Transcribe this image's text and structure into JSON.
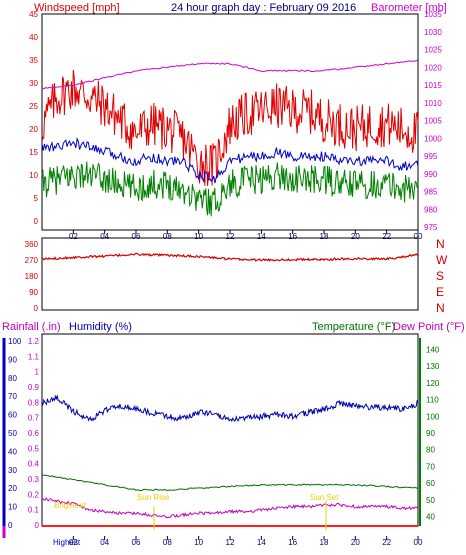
{
  "title": "24 hour graph day : February 09 2016",
  "colors": {
    "wind": "#e00000",
    "wind_avg": "#0000c8",
    "wind_low": "#008000",
    "barometer": "#d000d0",
    "direction": "#d00000",
    "rain": "#d000d0",
    "humidity": "#0000b0",
    "temperature": "#007000",
    "dew_point": "#c000c0",
    "frame": "#000000",
    "sun": "#e8d000",
    "x_axis_red": "#ff2020"
  },
  "chart_data": [
    {
      "type": "line",
      "name": "wind-barometer",
      "x_ticks": [
        "02",
        "04",
        "06",
        "08",
        "10",
        "12",
        "14",
        "16",
        "18",
        "20",
        "22",
        "00"
      ],
      "left_axis": {
        "label": "Windspeed [mph]",
        "ticks": [
          "0",
          "5",
          "10",
          "15",
          "20",
          "25",
          "30",
          "35",
          "40",
          "45"
        ],
        "ylim": [
          0,
          45
        ]
      },
      "right_axis": {
        "label": "Barometer [mb]",
        "ticks": [
          "975",
          "980",
          "985",
          "990",
          "995",
          "1000",
          "1005",
          "1010",
          "1015",
          "1020",
          "1025",
          "1030",
          "1035"
        ],
        "ylim": [
          975,
          1035
        ]
      },
      "series": [
        {
          "name": "Windspeed gust",
          "axis": "left",
          "x": [
            0,
            1,
            2,
            3,
            4,
            5,
            6,
            7,
            8,
            9,
            10,
            11,
            12,
            13,
            14,
            15,
            16,
            17,
            18,
            19,
            20,
            21,
            22,
            23,
            24
          ],
          "y": [
            21,
            27,
            29,
            27,
            25,
            22,
            19,
            21,
            20,
            18,
            13,
            12,
            21,
            23,
            24,
            25,
            24,
            24,
            22,
            21,
            20,
            21,
            21,
            20,
            19
          ]
        },
        {
          "name": "Windspeed average",
          "axis": "left",
          "x": [
            0,
            1,
            2,
            3,
            4,
            5,
            6,
            7,
            8,
            9,
            10,
            11,
            12,
            13,
            14,
            15,
            16,
            17,
            18,
            19,
            20,
            21,
            22,
            23,
            24
          ],
          "y": [
            16,
            16,
            17,
            16,
            15,
            14,
            13,
            14,
            13,
            13,
            10,
            9,
            13,
            14,
            14,
            15,
            14,
            14,
            14,
            13,
            13,
            13,
            13,
            12,
            12
          ]
        },
        {
          "name": "Windspeed low",
          "axis": "left",
          "x": [
            0,
            1,
            2,
            3,
            4,
            5,
            6,
            7,
            8,
            9,
            10,
            11,
            12,
            13,
            14,
            15,
            16,
            17,
            18,
            19,
            20,
            21,
            22,
            23,
            24
          ],
          "y": [
            8,
            9,
            10,
            10,
            9,
            8,
            7,
            8,
            8,
            7,
            5,
            4,
            8,
            9,
            9,
            10,
            9,
            9,
            9,
            8,
            8,
            8,
            8,
            7,
            7
          ]
        },
        {
          "name": "Barometer",
          "axis": "right",
          "x": [
            0,
            2,
            4,
            6,
            8,
            10,
            12,
            14,
            16,
            18,
            20,
            22,
            24
          ],
          "y": [
            1014,
            1015,
            1017,
            1019,
            1020,
            1021,
            1021,
            1019,
            1019,
            1019,
            1020,
            1021,
            1022
          ]
        }
      ]
    },
    {
      "type": "line",
      "name": "wind-direction",
      "x_ticks": [
        "02",
        "04",
        "06",
        "08",
        "10",
        "12",
        "14",
        "16",
        "18",
        "20",
        "22",
        "00"
      ],
      "left_axis": {
        "ticks": [
          "0",
          "90",
          "180",
          "270",
          "360"
        ],
        "ylim": [
          0,
          360
        ]
      },
      "right_axis": {
        "ticks": [
          "N",
          "W",
          "S",
          "E",
          "N"
        ]
      },
      "series": [
        {
          "name": "Wind direction",
          "x": [
            0,
            2,
            4,
            6,
            8,
            10,
            12,
            14,
            16,
            18,
            20,
            22,
            24
          ],
          "y": [
            275,
            285,
            292,
            302,
            296,
            290,
            275,
            270,
            272,
            273,
            278,
            276,
            300
          ]
        }
      ]
    },
    {
      "type": "line",
      "name": "rain-humidity-temperature",
      "x_ticks": [
        "02",
        "04",
        "06",
        "08",
        "10",
        "12",
        "14",
        "16",
        "18",
        "20",
        "22",
        "00"
      ],
      "headings": {
        "rain": "Rainfall (.in)",
        "humidity": "Humidity (%)",
        "temperature": "Temperature (°F)",
        "dew_point": "Dew Point (°F)"
      },
      "rain_axis": {
        "ticks": [
          "0",
          "0.1",
          "0.2",
          "0.3",
          "0.4",
          "0.5",
          "0.6",
          "0.7",
          "0.8",
          "0.9",
          "1",
          "1.1",
          "1.2"
        ],
        "ylim": [
          0,
          1.2
        ]
      },
      "humidity_axis": {
        "ticks": [
          "0",
          "10",
          "20",
          "30",
          "40",
          "50",
          "60",
          "70",
          "80",
          "90",
          "100"
        ],
        "ylim": [
          0,
          100
        ]
      },
      "temp_axis": {
        "ticks": [
          "40",
          "50",
          "60",
          "70",
          "80",
          "90",
          "100",
          "110",
          "120",
          "130",
          "140"
        ],
        "ylim": [
          35,
          145
        ]
      },
      "series": [
        {
          "name": "Humidity",
          "axis": "humidity",
          "x": [
            0,
            1,
            2,
            3,
            4,
            5,
            6,
            7,
            8,
            9,
            10,
            11,
            12,
            13,
            14,
            15,
            16,
            17,
            18,
            19,
            20,
            21,
            22,
            23,
            24
          ],
          "y": [
            66,
            69,
            62,
            57,
            62,
            65,
            63,
            61,
            59,
            58,
            61,
            61,
            57,
            58,
            59,
            60,
            59,
            61,
            63,
            66,
            65,
            64,
            64,
            63,
            66
          ]
        },
        {
          "name": "Temperature",
          "axis": "temp",
          "x": [
            0,
            2,
            4,
            6,
            8,
            10,
            12,
            14,
            16,
            18,
            20,
            22,
            24
          ],
          "y": [
            65,
            62,
            59,
            56,
            56,
            57,
            58,
            59,
            59,
            59,
            59,
            58,
            57
          ]
        },
        {
          "name": "Dew Point",
          "axis": "temp",
          "x": [
            0,
            1,
            2,
            3,
            4,
            5,
            6,
            7,
            8,
            9,
            10,
            11,
            12,
            13,
            14,
            15,
            16,
            17,
            18,
            19,
            20,
            21,
            22,
            23,
            24
          ],
          "y": [
            51,
            49,
            48,
            44,
            43,
            42,
            42,
            41,
            40,
            41,
            42,
            42,
            43,
            43,
            44,
            45,
            46,
            46,
            47,
            47,
            46,
            46,
            46,
            45,
            45
          ]
        }
      ],
      "annotations": [
        "Brightest",
        "Sun Rise",
        "Sun Set",
        "Highest"
      ]
    }
  ]
}
